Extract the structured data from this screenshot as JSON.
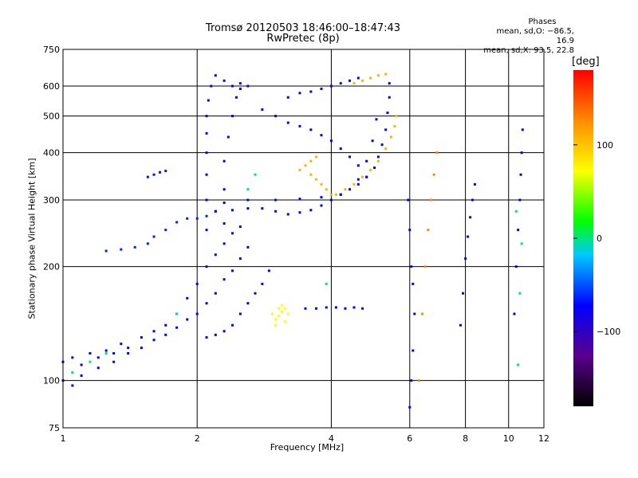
{
  "chart_data": {
    "type": "scatter",
    "title": "Tromsø 20120503 18:46:00–18:47:43",
    "subtitle": "RwPretec (8p)",
    "xlabel": "Frequency [MHz]",
    "ylabel": "Stationary phase Virtual Height [km]",
    "x_scale": "log",
    "y_scale": "log",
    "xlim": [
      1,
      12
    ],
    "ylim": [
      75,
      750
    ],
    "x_ticks": [
      1,
      2,
      4,
      6,
      8,
      10,
      12
    ],
    "x_tick_labels": [
      "1",
      "2",
      "4",
      "6",
      "8",
      "10",
      "12"
    ],
    "y_ticks": [
      75,
      100,
      200,
      300,
      400,
      500,
      600,
      750
    ],
    "y_tick_labels": [
      "75",
      "100",
      "200",
      "300",
      "400",
      "500",
      "600",
      "750"
    ],
    "grid": true,
    "phase_legend": {
      "heading": "Phases",
      "line1": "mean, sd,O: −86.5, 16.9",
      "line2": "mean, sd,X:  93.5, 22.8"
    },
    "colorbar": {
      "label": "[deg]",
      "range": [
        -180,
        180
      ],
      "ticks": [
        100,
        0,
        -100
      ],
      "tick_labels": [
        "100",
        "0",
        "−100"
      ]
    },
    "traces": [
      {
        "phase": -100,
        "points": [
          [
            1.0,
            112
          ],
          [
            1.05,
            115
          ],
          [
            1.1,
            110
          ],
          [
            1.15,
            118
          ],
          [
            1.2,
            115
          ],
          [
            1.25,
            120
          ],
          [
            1.3,
            118
          ],
          [
            1.35,
            125
          ],
          [
            1.4,
            122
          ],
          [
            1.5,
            130
          ],
          [
            1.6,
            135
          ],
          [
            1.7,
            140
          ],
          [
            1.8,
            150
          ],
          [
            1.9,
            165
          ],
          [
            2.0,
            180
          ],
          [
            2.1,
            200
          ],
          [
            2.2,
            215
          ],
          [
            2.3,
            230
          ],
          [
            2.4,
            245
          ],
          [
            2.5,
            255
          ]
        ]
      },
      {
        "phase": -100,
        "points": [
          [
            1.0,
            100
          ],
          [
            1.05,
            97
          ],
          [
            1.1,
            103
          ],
          [
            1.2,
            108
          ],
          [
            1.3,
            112
          ],
          [
            1.4,
            118
          ],
          [
            1.5,
            122
          ],
          [
            1.6,
            128
          ],
          [
            1.7,
            132
          ],
          [
            1.8,
            138
          ],
          [
            1.9,
            145
          ],
          [
            2.0,
            150
          ],
          [
            2.1,
            160
          ],
          [
            2.2,
            170
          ],
          [
            2.3,
            185
          ],
          [
            2.4,
            195
          ],
          [
            2.5,
            210
          ],
          [
            2.6,
            225
          ]
        ]
      },
      {
        "phase": -90,
        "points": [
          [
            1.25,
            220
          ],
          [
            1.35,
            222
          ],
          [
            1.45,
            225
          ],
          [
            1.55,
            230
          ],
          [
            1.6,
            240
          ],
          [
            1.7,
            250
          ],
          [
            1.8,
            262
          ],
          [
            1.9,
            268
          ],
          [
            2.0,
            268
          ],
          [
            2.1,
            272
          ],
          [
            2.2,
            280
          ]
        ]
      },
      {
        "phase": -95,
        "points": [
          [
            1.55,
            345
          ],
          [
            1.6,
            350
          ],
          [
            1.65,
            355
          ],
          [
            1.7,
            358
          ]
        ]
      },
      {
        "phase": -100,
        "points": [
          [
            2.1,
            130
          ],
          [
            2.2,
            132
          ],
          [
            2.3,
            135
          ],
          [
            2.4,
            140
          ],
          [
            2.5,
            150
          ],
          [
            2.6,
            160
          ],
          [
            2.7,
            170
          ],
          [
            2.8,
            180
          ],
          [
            2.9,
            195
          ]
        ]
      },
      {
        "phase": -100,
        "points": [
          [
            2.1,
            250
          ],
          [
            2.1,
            300
          ],
          [
            2.1,
            350
          ],
          [
            2.1,
            400
          ],
          [
            2.1,
            450
          ],
          [
            2.1,
            500
          ],
          [
            2.12,
            550
          ],
          [
            2.15,
            600
          ],
          [
            2.2,
            640
          ],
          [
            2.3,
            620
          ],
          [
            2.4,
            600
          ],
          [
            2.5,
            590
          ],
          [
            2.6,
            600
          ]
        ]
      },
      {
        "phase": -100,
        "points": [
          [
            2.3,
            260
          ],
          [
            2.3,
            320
          ],
          [
            2.3,
            380
          ],
          [
            2.35,
            440
          ],
          [
            2.4,
            500
          ],
          [
            2.45,
            560
          ],
          [
            2.5,
            610
          ]
        ]
      },
      {
        "phase": -100,
        "points": [
          [
            2.2,
            280
          ],
          [
            2.4,
            282
          ],
          [
            2.6,
            285
          ],
          [
            2.8,
            285
          ],
          [
            3.0,
            280
          ],
          [
            3.2,
            275
          ],
          [
            3.4,
            278
          ],
          [
            3.6,
            282
          ],
          [
            3.8,
            290
          ],
          [
            4.0,
            300
          ],
          [
            4.2,
            310
          ],
          [
            4.4,
            320
          ],
          [
            4.6,
            330
          ],
          [
            4.8,
            345
          ],
          [
            5.0,
            365
          ],
          [
            5.1,
            390
          ],
          [
            5.2,
            420
          ],
          [
            5.3,
            460
          ],
          [
            5.35,
            510
          ],
          [
            5.4,
            560
          ],
          [
            5.4,
            610
          ]
        ]
      },
      {
        "phase": -100,
        "points": [
          [
            2.3,
            295
          ],
          [
            2.6,
            300
          ],
          [
            3.0,
            300
          ],
          [
            3.4,
            302
          ],
          [
            3.8,
            305
          ],
          [
            4.2,
            310
          ],
          [
            4.6,
            340
          ],
          [
            4.8,
            380
          ],
          [
            4.95,
            430
          ],
          [
            5.05,
            490
          ]
        ]
      },
      {
        "phase": -100,
        "points": [
          [
            2.8,
            520
          ],
          [
            3.0,
            500
          ],
          [
            3.2,
            480
          ],
          [
            3.4,
            470
          ],
          [
            3.6,
            460
          ],
          [
            3.8,
            445
          ],
          [
            4.0,
            430
          ],
          [
            4.2,
            410
          ],
          [
            4.4,
            390
          ],
          [
            4.6,
            370
          ],
          [
            4.8,
            345
          ]
        ]
      },
      {
        "phase": -100,
        "points": [
          [
            3.2,
            560
          ],
          [
            3.4,
            575
          ],
          [
            3.6,
            580
          ],
          [
            3.8,
            590
          ],
          [
            4.0,
            600
          ],
          [
            4.2,
            610
          ],
          [
            4.4,
            620
          ],
          [
            4.6,
            630
          ]
        ]
      },
      {
        "phase": 100,
        "points": [
          [
            4.5,
            610
          ],
          [
            4.7,
            620
          ],
          [
            4.9,
            630
          ],
          [
            5.1,
            640
          ],
          [
            5.3,
            645
          ]
        ]
      },
      {
        "phase": 100,
        "points": [
          [
            4.1,
            310
          ],
          [
            4.3,
            320
          ],
          [
            4.5,
            330
          ],
          [
            4.7,
            345
          ],
          [
            4.9,
            360
          ],
          [
            5.1,
            380
          ],
          [
            5.3,
            410
          ],
          [
            5.45,
            440
          ],
          [
            5.55,
            470
          ],
          [
            5.6,
            500
          ]
        ]
      },
      {
        "phase": 100,
        "points": [
          [
            3.4,
            360
          ],
          [
            3.5,
            370
          ],
          [
            3.6,
            380
          ],
          [
            3.7,
            390
          ],
          [
            3.6,
            350
          ],
          [
            3.7,
            340
          ],
          [
            3.8,
            330
          ],
          [
            3.9,
            320
          ],
          [
            4.0,
            310
          ]
        ]
      },
      {
        "phase": 60,
        "points": [
          [
            2.95,
            150
          ],
          [
            3.0,
            145
          ],
          [
            3.05,
            148
          ],
          [
            3.1,
            152
          ],
          [
            3.15,
            155
          ],
          [
            3.2,
            150
          ],
          [
            3.05,
            155
          ],
          [
            3.1,
            158
          ],
          [
            3.0,
            140
          ],
          [
            3.15,
            143
          ]
        ]
      },
      {
        "phase": -100,
        "points": [
          [
            3.5,
            155
          ],
          [
            3.7,
            155
          ],
          [
            3.9,
            156
          ],
          [
            4.1,
            156
          ],
          [
            4.3,
            155
          ],
          [
            4.5,
            156
          ],
          [
            4.7,
            155
          ]
        ]
      },
      {
        "phase": -20,
        "points": [
          [
            1.05,
            105
          ],
          [
            1.15,
            112
          ],
          [
            1.25,
            118
          ],
          [
            1.8,
            150
          ],
          [
            2.6,
            320
          ],
          [
            2.7,
            350
          ],
          [
            3.9,
            180
          ]
        ]
      },
      {
        "phase": -100,
        "points": [
          [
            5.95,
            300
          ],
          [
            6.0,
            250
          ],
          [
            6.05,
            200
          ],
          [
            6.1,
            180
          ],
          [
            6.15,
            150
          ],
          [
            6.1,
            120
          ],
          [
            6.05,
            100
          ],
          [
            6.0,
            85
          ]
        ]
      },
      {
        "phase": 120,
        "points": [
          [
            6.3,
            100
          ],
          [
            6.4,
            150
          ],
          [
            6.5,
            200
          ],
          [
            6.6,
            250
          ],
          [
            6.7,
            300
          ],
          [
            6.8,
            350
          ],
          [
            6.9,
            400
          ]
        ]
      },
      {
        "phase": -100,
        "points": [
          [
            7.8,
            140
          ],
          [
            7.9,
            170
          ],
          [
            8.0,
            210
          ],
          [
            8.1,
            240
          ],
          [
            8.2,
            270
          ],
          [
            8.3,
            300
          ],
          [
            8.4,
            330
          ]
        ]
      },
      {
        "phase": -100,
        "points": [
          [
            10.3,
            150
          ],
          [
            10.4,
            200
          ],
          [
            10.5,
            250
          ],
          [
            10.6,
            300
          ],
          [
            10.65,
            350
          ],
          [
            10.7,
            400
          ],
          [
            10.75,
            460
          ]
        ]
      },
      {
        "phase": -20,
        "points": [
          [
            10.5,
            110
          ],
          [
            10.6,
            170
          ],
          [
            10.7,
            230
          ],
          [
            10.4,
            280
          ]
        ]
      }
    ]
  }
}
